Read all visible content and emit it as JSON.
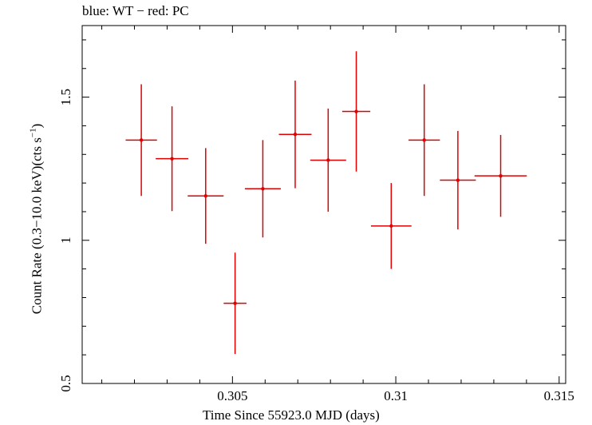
{
  "chart_data": {
    "type": "scatter",
    "title": "blue: WT − red: PC",
    "xlabel": "Time Since 55923.0 MJD (days)",
    "ylabel": {
      "main": "Count Rate (0.3−10.0 keV)(cts s",
      "sup": "−1",
      "end": ")"
    },
    "xlim": [
      0.3004,
      0.3152
    ],
    "ylim": [
      0.5,
      1.75
    ],
    "x_ticks": [
      0.305,
      0.31,
      0.315
    ],
    "x_tick_labels": [
      "0.305",
      "0.31",
      "0.315"
    ],
    "y_ticks": [
      0.5,
      1,
      1.5
    ],
    "y_tick_labels": [
      "0.5",
      "1",
      "1.5"
    ],
    "grid": false,
    "series": [
      {
        "color": "#e00000",
        "points": [
          {
            "x": 0.30221,
            "xerr": 0.00048,
            "y": 1.35,
            "yerr": 0.195
          },
          {
            "x": 0.30315,
            "xerr": 0.0005,
            "y": 1.285,
            "yerr": 0.183
          },
          {
            "x": 0.30418,
            "xerr": 0.00055,
            "y": 1.155,
            "yerr": 0.167
          },
          {
            "x": 0.30508,
            "xerr": 0.00035,
            "y": 0.78,
            "yerr": 0.177
          },
          {
            "x": 0.30593,
            "xerr": 0.00055,
            "y": 1.18,
            "yerr": 0.17
          },
          {
            "x": 0.30692,
            "xerr": 0.0005,
            "y": 1.37,
            "yerr": 0.188
          },
          {
            "x": 0.30793,
            "xerr": 0.00055,
            "y": 1.28,
            "yerr": 0.18
          },
          {
            "x": 0.30879,
            "xerr": 0.00043,
            "y": 1.45,
            "yerr": 0.21
          },
          {
            "x": 0.30986,
            "xerr": 0.00062,
            "y": 1.05,
            "yerr": 0.15
          },
          {
            "x": 0.31087,
            "xerr": 0.00048,
            "y": 1.35,
            "yerr": 0.195
          },
          {
            "x": 0.3119,
            "xerr": 0.00055,
            "y": 1.21,
            "yerr": 0.172
          },
          {
            "x": 0.31321,
            "xerr": 0.0008,
            "y": 1.225,
            "yerr": 0.143
          }
        ]
      }
    ]
  }
}
